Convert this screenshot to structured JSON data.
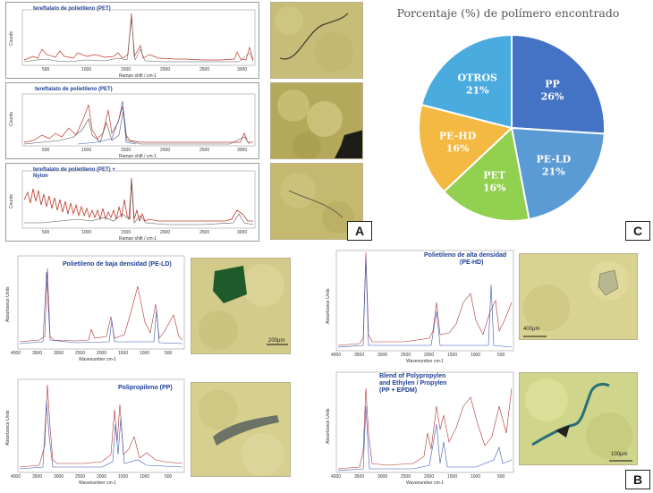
{
  "panel_a": {
    "badge": "A",
    "spectra": [
      {
        "title_lines": [
          "tereftalato de polietileno (PET)"
        ],
        "ylabel": "Counts",
        "xlabel": "Raman shift / cm-1",
        "ticks": [
          "500",
          "1000",
          "1500",
          "2000",
          "2500",
          "3000"
        ]
      },
      {
        "title_lines": [
          "tereftalato de polietileno (PET)"
        ],
        "ylabel": "Counts",
        "xlabel": "Raman shift / cm-1",
        "ticks": [
          "500",
          "1000",
          "1500",
          "2000",
          "2500",
          "3000"
        ]
      },
      {
        "title_lines": [
          "tereftalato de polietileno (PET) +",
          "Nylon"
        ],
        "ylabel": "Counts",
        "xlabel": "Raman shift / cm-1",
        "ticks": [
          "500",
          "1000",
          "1500",
          "2000",
          "2500",
          "3000"
        ]
      }
    ]
  },
  "panel_b": {
    "badge": "B",
    "spectra": [
      {
        "title_lines": [
          "Polietileno de baja densidad (PE-LD)"
        ],
        "ylabel": "Absorbance Units",
        "xlabel": "Wavenumber cm-1",
        "ticks": [
          "4000",
          "3500",
          "3000",
          "2500",
          "2000",
          "1500",
          "1000",
          "500"
        ]
      },
      {
        "title_lines": [
          "Polipropileno (PP)"
        ],
        "ylabel": "Absorbance Units",
        "xlabel": "Wavenumber cm-1",
        "ticks": [
          "4000",
          "3500",
          "3000",
          "2500",
          "2000",
          "1500",
          "1000",
          "500"
        ]
      },
      {
        "title_lines": [
          "Polietileno de alta densidad",
          "(PE-HD)"
        ],
        "ylabel": "Absorbance Units",
        "xlabel": "Wavenumber cm-1",
        "ticks": [
          "4000",
          "3500",
          "3000",
          "2500",
          "2000",
          "1500",
          "1000",
          "500"
        ]
      },
      {
        "title_lines": [
          "Blend of Polypropylen",
          "and Ethylen / Propylen",
          "(PP + EPDM)"
        ],
        "ylabel": "Absorbance Units",
        "xlabel": "Wavenumber cm-1",
        "ticks": [
          "4000",
          "3500",
          "3000",
          "2500",
          "2000",
          "1500",
          "1000",
          "500"
        ]
      }
    ],
    "scale_bars": [
      "200µm",
      "400µm",
      "100µm"
    ]
  },
  "panel_c": {
    "badge": "C",
    "colors": {
      "PP": "#4472c4",
      "PE-LD": "#5b9bd5",
      "PET": "#92d050",
      "PE-HD": "#f4b942",
      "OTROS": "#4aabdf"
    }
  },
  "chart_data": {
    "type": "pie",
    "title": "Porcentaje (%) de polímero encontrado",
    "labels": [
      "PP",
      "PE-LD",
      "PET",
      "PE-HD",
      "OTROS"
    ],
    "values": [
      26,
      21,
      16,
      16,
      21
    ],
    "value_labels": [
      "26%",
      "21%",
      "16%",
      "16%",
      "21%"
    ]
  }
}
